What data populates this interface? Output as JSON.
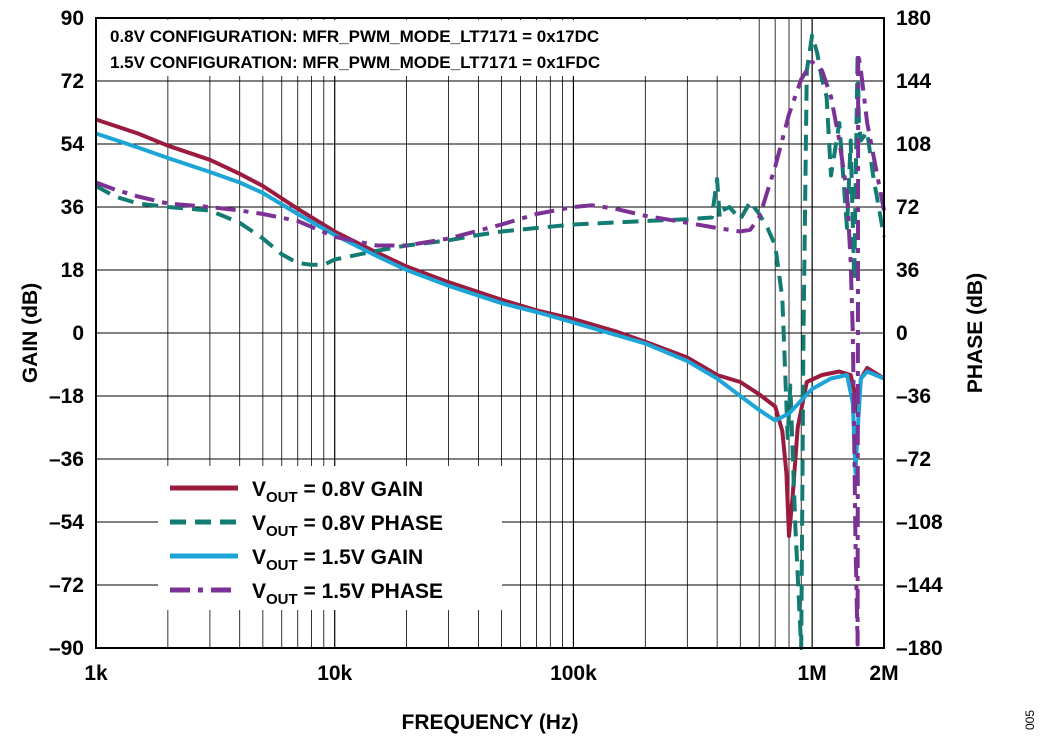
{
  "figure_id": "005",
  "chart_data": {
    "type": "line",
    "title": "",
    "annotations": [
      "0.8V CONFIGURATION: MFR_PWM_MODE_LT7171 = 0x17DC",
      "1.5V CONFIGURATION: MFR_PWM_MODE_LT7171 = 0x1FDC"
    ],
    "xlabel": "FREQUENCY (Hz)",
    "ylabel_left": "GAIN (dB)",
    "ylabel_right": "PHASE (dB)",
    "x_scale": "log",
    "xlim": [
      1000,
      2000000
    ],
    "x_ticks": [
      {
        "value": 1000,
        "label": "1k"
      },
      {
        "value": 10000,
        "label": "10k"
      },
      {
        "value": 100000,
        "label": "100k"
      },
      {
        "value": 1000000,
        "label": "1M"
      },
      {
        "value": 2000000,
        "label": "2M"
      }
    ],
    "ylim_left": [
      -90,
      90
    ],
    "y_ticks_left": [
      {
        "value": 90,
        "label": "90"
      },
      {
        "value": 72,
        "label": "72"
      },
      {
        "value": 54,
        "label": "54"
      },
      {
        "value": 36,
        "label": "36"
      },
      {
        "value": 18,
        "label": "18"
      },
      {
        "value": 0,
        "label": "0"
      },
      {
        "value": -18,
        "label": "–18"
      },
      {
        "value": -36,
        "label": "–36"
      },
      {
        "value": -54,
        "label": "–54"
      },
      {
        "value": -72,
        "label": "–72"
      },
      {
        "value": -90,
        "label": "–90"
      }
    ],
    "ylim_right": [
      -180,
      180
    ],
    "y_ticks_right": [
      {
        "value": 180,
        "label": "180"
      },
      {
        "value": 144,
        "label": "144"
      },
      {
        "value": 108,
        "label": "108"
      },
      {
        "value": 72,
        "label": "72"
      },
      {
        "value": 36,
        "label": "36"
      },
      {
        "value": 0,
        "label": "0"
      },
      {
        "value": -36,
        "label": "–36"
      },
      {
        "value": -72,
        "label": "–72"
      },
      {
        "value": -108,
        "label": "–108"
      },
      {
        "value": -144,
        "label": "–144"
      },
      {
        "value": -180,
        "label": "–180"
      }
    ],
    "grid": true,
    "legend_position": "bottom-left",
    "series": [
      {
        "name": "VOUT = 0.8V GAIN",
        "legend_main": "V",
        "legend_sub": "OUT",
        "legend_rest": " = 0.8V GAIN",
        "axis": "left",
        "color": "#9b1b3f",
        "dash": "solid",
        "x": [
          1000,
          1500,
          2000,
          3000,
          4000,
          5000,
          7000,
          10000,
          15000,
          20000,
          30000,
          50000,
          70000,
          100000,
          150000,
          200000,
          300000,
          400000,
          500000,
          600000,
          700000,
          750000,
          780000,
          800000,
          830000,
          870000,
          950000,
          1100000,
          1300000,
          1450000,
          1520000,
          1560000,
          1600000,
          1700000,
          2000000
        ],
        "y": [
          61,
          57,
          53.5,
          49.5,
          45.5,
          42,
          35.5,
          29,
          23,
          19,
          14.5,
          9.5,
          6.5,
          4,
          0.5,
          -2.5,
          -7,
          -12,
          -14,
          -17.5,
          -21,
          -28,
          -40,
          -58,
          -46,
          -27,
          -14,
          -12,
          -11,
          -12,
          -18,
          -23,
          -13,
          -10,
          -13
        ]
      },
      {
        "name": "VOUT = 0.8V PHASE",
        "legend_main": "V",
        "legend_sub": "OUT",
        "legend_rest": " = 0.8V PHASE",
        "axis": "right",
        "color": "#137c72",
        "dash": "dashed",
        "x": [
          1000,
          1200,
          1500,
          2000,
          3000,
          4000,
          5000,
          6000,
          7000,
          8000,
          9000,
          10000,
          15000,
          20000,
          30000,
          40000,
          50000,
          70000,
          100000,
          200000,
          300000,
          380000,
          400000,
          410000,
          420000,
          450000,
          500000,
          550000,
          600000,
          650000,
          700000,
          750000,
          770000,
          790000,
          810000,
          850000,
          900000,
          920000,
          950000,
          1000000,
          1050000,
          1100000,
          1150000,
          1200000,
          1300000,
          1400000,
          1450000,
          1500000,
          1550000,
          1570000,
          1600000,
          1700000,
          1800000,
          2000000
        ],
        "y": [
          84,
          78,
          74,
          72,
          70,
          63,
          54,
          45,
          40,
          39,
          39,
          42,
          47,
          50,
          53,
          56,
          58,
          60,
          62,
          64,
          65,
          66,
          88,
          66,
          70,
          72,
          65,
          75,
          68,
          60,
          50,
          20,
          -20,
          -60,
          -30,
          -110,
          -180,
          0,
          150,
          170,
          160,
          145,
          135,
          90,
          120,
          60,
          110,
          30,
          160,
          120,
          110,
          115,
          90,
          55
        ]
      },
      {
        "name": "VOUT = 1.5V GAIN",
        "legend_main": "V",
        "legend_sub": "OUT",
        "legend_rest": " = 1.5V GAIN",
        "axis": "left",
        "color": "#1da5d8",
        "dash": "solid",
        "x": [
          1000,
          1500,
          2000,
          3000,
          4000,
          5000,
          7000,
          10000,
          15000,
          20000,
          30000,
          50000,
          70000,
          100000,
          150000,
          200000,
          300000,
          400000,
          500000,
          600000,
          700000,
          800000,
          1000000,
          1200000,
          1400000,
          1480000,
          1520000,
          1550000,
          1600000,
          1700000,
          2000000
        ],
        "y": [
          57,
          53,
          50,
          46,
          43,
          40,
          34,
          28,
          22,
          18,
          13.5,
          8.5,
          6,
          3,
          -0.5,
          -3,
          -8,
          -13,
          -18,
          -22,
          -25,
          -23,
          -16,
          -13,
          -12,
          -20,
          -40,
          -28,
          -13,
          -11,
          -13
        ]
      },
      {
        "name": "VOUT = 1.5V PHASE",
        "legend_main": "V",
        "legend_sub": "OUT",
        "legend_rest": " = 1.5V PHASE",
        "axis": "right",
        "color": "#7b3294",
        "dash": "dashdot",
        "x": [
          1000,
          1200,
          1500,
          2000,
          3000,
          4000,
          5000,
          7000,
          10000,
          15000,
          20000,
          30000,
          50000,
          70000,
          100000,
          120000,
          150000,
          200000,
          300000,
          400000,
          500000,
          550000,
          600000,
          700000,
          800000,
          900000,
          1000000,
          1100000,
          1200000,
          1300000,
          1400000,
          1450000,
          1480000,
          1500000,
          1520000,
          1550000,
          1560000,
          1600000,
          1700000,
          2000000
        ],
        "y": [
          86,
          82,
          78,
          74,
          72,
          70,
          68,
          64,
          55,
          50,
          50,
          54,
          62,
          68,
          72,
          73,
          71,
          67,
          63,
          60,
          58,
          59,
          66,
          95,
          125,
          145,
          155,
          150,
          135,
          110,
          80,
          40,
          0,
          -60,
          -120,
          -178,
          160,
          150,
          120,
          70
        ]
      }
    ]
  }
}
